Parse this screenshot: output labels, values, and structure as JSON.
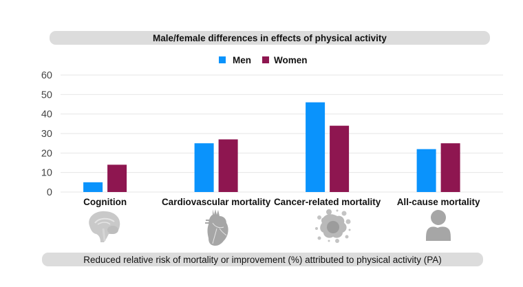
{
  "chart_data": {
    "type": "bar",
    "title": "Male/female differences in effects of physical activity",
    "xlabel": "Reduced relative risk of mortality or improvement (%) attributed to physical activity (PA)",
    "ylabel": "",
    "categories": [
      "Cognition",
      "Cardiovascular mortality",
      "Cancer-related mortality",
      "All-cause mortality"
    ],
    "series": [
      {
        "name": "Men",
        "color": "#0a93fc",
        "values": [
          5,
          25,
          46,
          22
        ]
      },
      {
        "name": "Women",
        "color": "#8e1650",
        "values": [
          14,
          27,
          34,
          25
        ]
      }
    ],
    "ylim": [
      0,
      60
    ],
    "yticks": [
      0,
      10,
      20,
      30,
      40,
      50,
      60
    ],
    "grid": true,
    "legend_position": "top-center",
    "category_icons": [
      "brain-icon",
      "heart-icon",
      "cancer-cell-icon",
      "person-icon"
    ]
  },
  "colors": {
    "banner_bg": "#dcdcdc",
    "gridline": "#e6e6e6",
    "icon_gray": "#a6a6a6"
  }
}
